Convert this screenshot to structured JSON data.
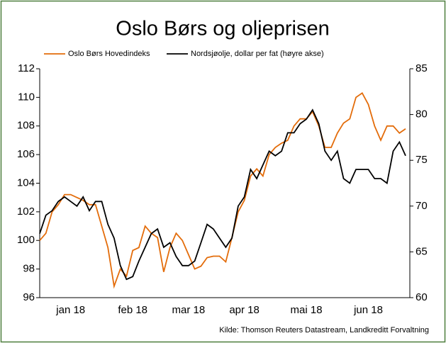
{
  "chart_data": {
    "type": "line",
    "title": "Oslo Børs og oljeprisen",
    "source": "Kilde: Thomson Reuters Datastream, Landkreditt Forvaltning",
    "categories": [
      null,
      null,
      null,
      null,
      null,
      "jan 18",
      null,
      null,
      null,
      null,
      null,
      null,
      null,
      null,
      null,
      "feb 18",
      null,
      null,
      null,
      null,
      null,
      null,
      null,
      null,
      "mar 18",
      null,
      null,
      null,
      null,
      null,
      null,
      null,
      null,
      "apr 18",
      null,
      null,
      null,
      null,
      null,
      null,
      null,
      null,
      null,
      "mai 18",
      null,
      null,
      null,
      null,
      null,
      null,
      null,
      null,
      null,
      "jun 18",
      null,
      null,
      null,
      null,
      null,
      null
    ],
    "series": [
      {
        "name": "Oslo Børs Hovedindeks",
        "color": "#e36c0a",
        "axis": "y",
        "values": [
          100.0,
          100.5,
          102.0,
          102.5,
          103.2,
          103.2,
          103.0,
          102.8,
          102.5,
          102.5,
          101.0,
          99.5,
          96.8,
          98.0,
          97.5,
          99.3,
          99.5,
          101.0,
          100.5,
          100.2,
          97.8,
          99.5,
          100.5,
          100.0,
          99.0,
          98.0,
          98.2,
          98.8,
          98.9,
          98.9,
          98.5,
          100.2,
          102.0,
          102.8,
          104.5,
          105.0,
          104.5,
          106.0,
          106.5,
          106.8,
          107.0,
          108.0,
          108.5,
          108.5,
          109.0,
          108.0,
          106.5,
          106.5,
          107.5,
          108.2,
          108.5,
          110.0,
          110.3,
          109.5,
          108.0,
          107.0,
          108.0,
          108.0,
          107.5,
          107.8
        ]
      },
      {
        "name": "Nordsjøolje, dollar per fat (høyre akse)",
        "color": "#000000",
        "axis": "y2",
        "values": [
          67,
          69,
          69.5,
          70.5,
          71,
          70.5,
          70,
          71,
          69.5,
          70.5,
          70.5,
          68,
          66.5,
          63.5,
          62,
          62.3,
          64,
          65.5,
          67,
          67.5,
          65.5,
          66,
          64.5,
          63.5,
          63.5,
          64,
          66,
          68,
          67.5,
          66.5,
          65.5,
          66.5,
          70,
          71,
          74,
          73,
          74.5,
          76,
          75.5,
          76,
          78,
          78,
          79,
          79.5,
          80.5,
          79,
          76,
          75,
          76,
          73,
          72.5,
          74,
          74,
          74,
          73,
          73,
          72.5,
          76,
          77,
          75.5
        ]
      }
    ],
    "ylim": [
      96,
      112
    ],
    "yticks": [
      96,
      98,
      100,
      102,
      104,
      106,
      108,
      110,
      112
    ],
    "y2lim": [
      60,
      85
    ],
    "y2ticks": [
      60,
      65,
      70,
      75,
      80,
      85
    ]
  }
}
